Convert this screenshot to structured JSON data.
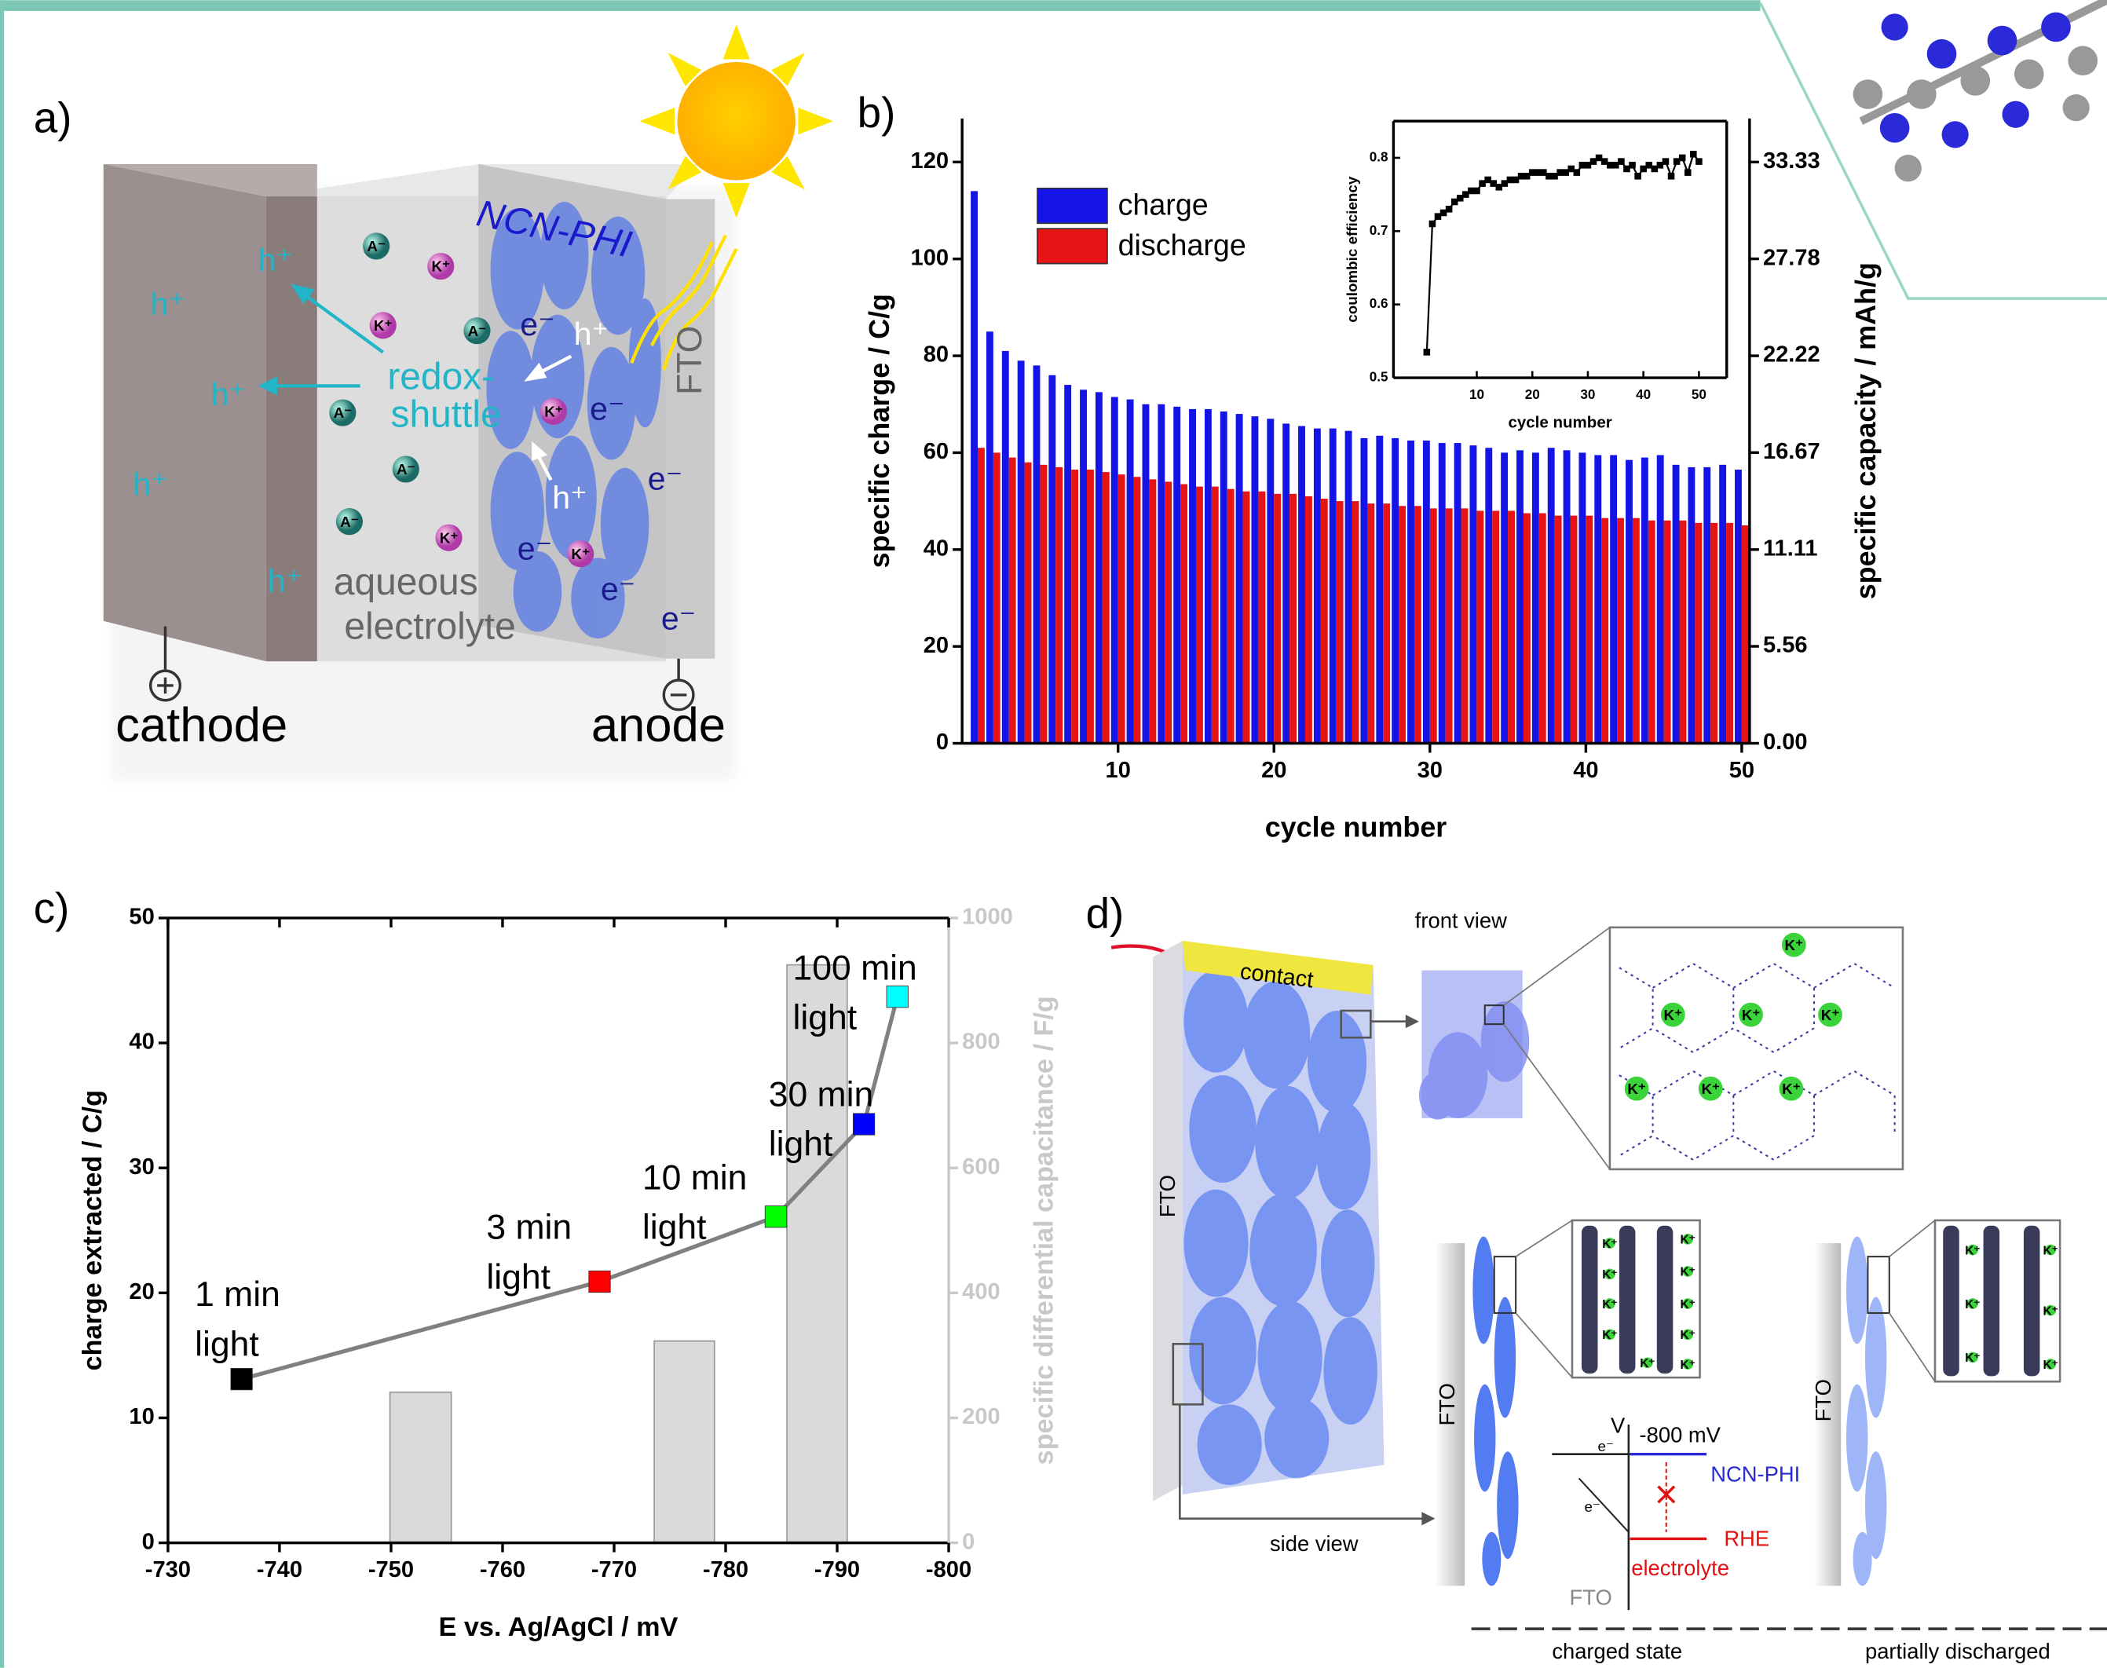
{
  "panel_a": {
    "label": "a)",
    "film": "NCN-PHI",
    "fto": "FTO",
    "shuttle": [
      "redox-",
      "shuttle"
    ],
    "electrolyte": [
      "aqueous",
      "electrolyte"
    ],
    "cathode": "cathode",
    "anode": "anode",
    "holes": [
      "h⁺",
      "h⁺",
      "h⁺",
      "h⁺",
      "h⁺",
      "h⁺",
      "h⁺"
    ],
    "electrons": [
      "e⁻",
      "e⁻",
      "e⁻",
      "e⁻",
      "e⁻",
      "e⁻"
    ],
    "anions": [
      "A⁻",
      "A⁻",
      "A⁻",
      "A⁻",
      "A⁻"
    ],
    "cations": [
      "K⁺",
      "K⁺",
      "K⁺",
      "K⁺",
      "K⁺"
    ]
  },
  "chart_data": [
    {
      "type": "bar",
      "panel_label": "b)",
      "x_label": "cycle number",
      "y_label": "specific charge / C/g",
      "y2_label": "specific capacity / mAh/g",
      "x": [
        1,
        2,
        3,
        4,
        5,
        6,
        7,
        8,
        9,
        10,
        11,
        12,
        13,
        14,
        15,
        16,
        17,
        18,
        19,
        20,
        21,
        22,
        23,
        24,
        25,
        26,
        27,
        28,
        29,
        30,
        31,
        32,
        33,
        34,
        35,
        36,
        37,
        38,
        39,
        40,
        41,
        42,
        43,
        44,
        45,
        46,
        47,
        48,
        49,
        50
      ],
      "series": [
        {
          "name": "charge",
          "color": "#1414e6",
          "values": [
            114,
            85,
            81,
            79,
            78,
            76,
            74,
            73,
            72.5,
            71.5,
            71,
            70,
            70,
            69.5,
            69,
            69,
            68.5,
            68,
            67.5,
            67,
            66,
            65.5,
            65,
            65,
            64.5,
            63,
            63.5,
            63,
            62.5,
            62.5,
            62,
            62,
            61.5,
            61,
            60,
            60.5,
            60,
            61,
            60.5,
            60,
            59.5,
            59.5,
            58.5,
            59,
            59.5,
            57.5,
            57,
            57,
            57.5,
            56.5
          ]
        },
        {
          "name": "discharge",
          "color": "#e61414",
          "values": [
            61,
            60,
            59,
            58,
            57.5,
            57,
            56.5,
            56.5,
            56,
            55.5,
            55,
            54.5,
            54,
            53.5,
            53,
            53,
            52.5,
            52,
            52,
            51.5,
            51.5,
            51,
            50.5,
            50,
            50,
            49.5,
            49.5,
            49,
            49,
            48.5,
            48.5,
            48.5,
            48,
            48,
            48,
            47.5,
            47.5,
            47,
            47,
            47,
            46.5,
            46.5,
            46.5,
            46,
            46,
            46,
            45.5,
            45.5,
            45.5,
            45
          ]
        }
      ],
      "xlim": [
        0,
        50.5
      ],
      "xticks": [
        10,
        20,
        30,
        40,
        50
      ],
      "ylim": [
        0,
        129
      ],
      "yticks": [
        0,
        20,
        40,
        60,
        80,
        100,
        120
      ],
      "y2lim": [
        0,
        35.83
      ],
      "y2ticks": [
        {
          "value": 0,
          "label": "0.00"
        },
        5.56,
        11.11,
        16.67,
        22.22,
        27.78,
        33.33
      ],
      "legend": "upper left"
    },
    {
      "type": "line",
      "x_label": "cycle number",
      "y_label": "coulombic efficiency",
      "color": "#000000",
      "x": [
        1,
        2,
        3,
        4,
        5,
        6,
        7,
        8,
        9,
        10,
        11,
        12,
        13,
        14,
        15,
        16,
        17,
        18,
        19,
        20,
        21,
        22,
        23,
        24,
        25,
        26,
        27,
        28,
        29,
        30,
        31,
        32,
        33,
        34,
        35,
        36,
        37,
        38,
        39,
        40,
        41,
        42,
        43,
        44,
        45,
        46,
        47,
        48,
        49,
        50
      ],
      "values": [
        0.535,
        0.71,
        0.72,
        0.725,
        0.73,
        0.74,
        0.745,
        0.75,
        0.755,
        0.755,
        0.765,
        0.77,
        0.765,
        0.76,
        0.765,
        0.77,
        0.77,
        0.775,
        0.775,
        0.78,
        0.78,
        0.78,
        0.775,
        0.775,
        0.78,
        0.78,
        0.785,
        0.78,
        0.79,
        0.79,
        0.795,
        0.8,
        0.795,
        0.79,
        0.79,
        0.795,
        0.785,
        0.79,
        0.775,
        0.785,
        0.79,
        0.785,
        0.79,
        0.795,
        0.775,
        0.795,
        0.8,
        0.78,
        0.805,
        0.795
      ],
      "xlim": [
        -5,
        55
      ],
      "xticks": [
        10,
        20,
        30,
        40,
        50
      ],
      "ylim": [
        0.5,
        0.85
      ],
      "yticks": [
        0.5,
        0.6,
        0.7,
        0.8
      ]
    },
    {
      "type": "combo",
      "panel_label": "c)",
      "x_label": "E vs. Ag/AgCl / mV",
      "y_label": "charge extracted / C/g",
      "y2_label": "specific differential capacitance / F/g",
      "y2_color": "#c8c8c8",
      "xlim": [
        -730,
        -800
      ],
      "xticks": [
        -730,
        -740,
        -750,
        -760,
        -770,
        -780,
        -790,
        -800
      ],
      "ylim": [
        0,
        50
      ],
      "yticks": [
        0,
        10,
        20,
        30,
        40,
        50
      ],
      "y2lim": [
        0,
        1000
      ],
      "y2ticks": [
        0,
        200,
        400,
        600,
        800,
        1000
      ],
      "series": [
        {
          "type": "line",
          "color": "#808080",
          "x": [
            -736.6,
            -768.7,
            -784.5,
            -792.4,
            -795.4
          ],
          "values": [
            13.1,
            20.9,
            26.1,
            33.5,
            43.7
          ],
          "colors": [
            "#000000",
            "#ff0000",
            "#00ff00",
            "#0000ff",
            "#00ffff"
          ],
          "annotations": [
            [
              "1 min",
              "light"
            ],
            [
              "3 min",
              "light"
            ],
            [
              "10 min",
              "light"
            ],
            [
              "30 min",
              "light"
            ],
            [
              "100 min",
              "light"
            ]
          ]
        },
        {
          "type": "bar",
          "axis": "y2",
          "color": "#dadada",
          "x_start": [
            -749.9,
            -773.6,
            -785.5
          ],
          "x_end": [
            -755.4,
            -779,
            -790.9
          ],
          "values": [
            241,
            323,
            925
          ]
        }
      ]
    }
  ],
  "panel_d": {
    "label": "d)",
    "contact": "contact",
    "fto": [
      "FTO",
      "FTO",
      "FTO"
    ],
    "front_view": "front view",
    "side_view": "side view",
    "front_cations": [
      "K⁺",
      "K⁺",
      "K⁺",
      "K⁺",
      "K⁺",
      "K⁺",
      "K⁺"
    ],
    "charged_cations": [
      "K⁺",
      "K⁺",
      "K⁺",
      "K⁺",
      "K⁺",
      "K⁺",
      "K⁺",
      "K⁺",
      "K⁺",
      "K⁺"
    ],
    "partial_cations": [
      "K⁺",
      "K⁺",
      "K⁺",
      "K⁺",
      "K⁺",
      "K⁺"
    ],
    "potential": "-800 mV",
    "axis": "V",
    "film": "NCN-PHI",
    "reference": "RHE",
    "electrolyte": "electrolyte",
    "diagram_fto": "FTO",
    "electrons": [
      "e⁻",
      "e⁻"
    ],
    "states": [
      "charged state",
      "partially discharged"
    ]
  }
}
